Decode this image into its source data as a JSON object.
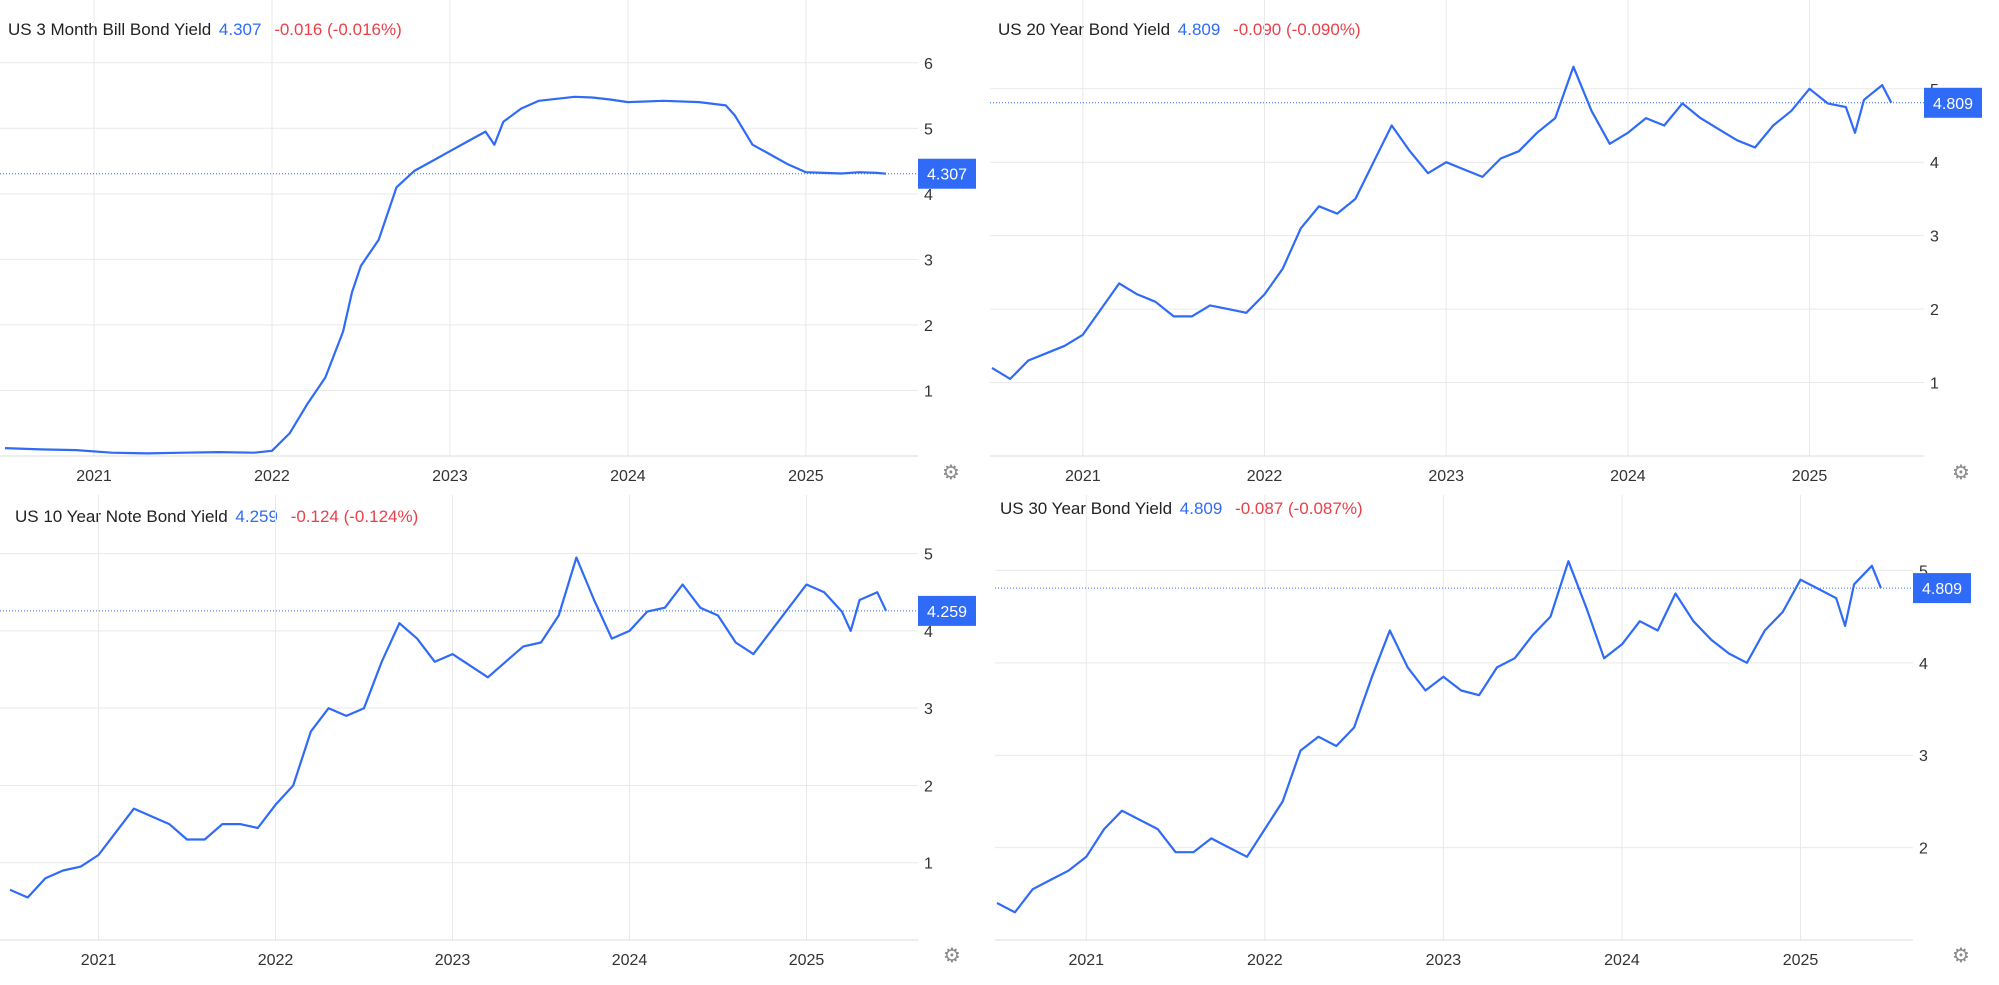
{
  "colors": {
    "line": "#2f6bf6",
    "badge": "#2f6bf6",
    "negative": "#e8414a",
    "grid": "#e9e9e9",
    "axis_text": "#333333"
  },
  "gear_icon": "gear-icon",
  "gear_glyph": "⚙",
  "chart_data": [
    {
      "type": "line",
      "title": "US 3 Month Bill Bond Yield",
      "current_value": "4.307",
      "change": "-0.016 (-0.016%)",
      "last_label": "4.307",
      "x_ticks": [
        "2021",
        "2022",
        "2023",
        "2024",
        "2025"
      ],
      "y_ticks": [
        "1",
        "2",
        "3",
        "4",
        "5",
        "6"
      ],
      "xlim": [
        2020.5,
        2025.63
      ],
      "ylim": [
        0,
        6.5
      ],
      "reference_line": 4.307,
      "x": [
        2020.5,
        2020.7,
        2020.9,
        2021.1,
        2021.3,
        2021.5,
        2021.7,
        2021.9,
        2022.0,
        2022.1,
        2022.2,
        2022.3,
        2022.4,
        2022.45,
        2022.5,
        2022.6,
        2022.7,
        2022.8,
        2022.9,
        2023.0,
        2023.1,
        2023.2,
        2023.25,
        2023.3,
        2023.4,
        2023.5,
        2023.6,
        2023.7,
        2023.8,
        2023.9,
        2024.0,
        2024.2,
        2024.4,
        2024.55,
        2024.6,
        2024.7,
        2024.8,
        2024.9,
        2025.0,
        2025.1,
        2025.2,
        2025.3,
        2025.4,
        2025.45
      ],
      "y": [
        0.12,
        0.1,
        0.09,
        0.05,
        0.04,
        0.05,
        0.06,
        0.05,
        0.08,
        0.35,
        0.8,
        1.2,
        1.9,
        2.5,
        2.9,
        3.3,
        4.1,
        4.35,
        4.5,
        4.65,
        4.8,
        4.95,
        4.75,
        5.1,
        5.3,
        5.42,
        5.45,
        5.48,
        5.47,
        5.44,
        5.4,
        5.42,
        5.4,
        5.35,
        5.2,
        4.75,
        4.6,
        4.45,
        4.33,
        4.32,
        4.31,
        4.33,
        4.32,
        4.307
      ]
    },
    {
      "type": "line",
      "title": "US 20 Year Bond Yield",
      "current_value": "4.809",
      "change": "-0.090 (-0.090%)",
      "last_label": "4.809",
      "x_ticks": [
        "2021",
        "2022",
        "2023",
        "2024",
        "2025"
      ],
      "y_ticks": [
        "1",
        "2",
        "3",
        "4",
        "5"
      ],
      "xlim": [
        2020.5,
        2025.63
      ],
      "ylim": [
        0,
        5.8
      ],
      "reference_line": 4.809,
      "x": [
        2020.5,
        2020.6,
        2020.7,
        2020.8,
        2020.9,
        2021.0,
        2021.1,
        2021.2,
        2021.3,
        2021.4,
        2021.5,
        2021.6,
        2021.7,
        2021.8,
        2021.9,
        2022.0,
        2022.1,
        2022.2,
        2022.3,
        2022.4,
        2022.5,
        2022.6,
        2022.7,
        2022.8,
        2022.9,
        2023.0,
        2023.1,
        2023.2,
        2023.3,
        2023.4,
        2023.5,
        2023.6,
        2023.7,
        2023.8,
        2023.9,
        2024.0,
        2024.1,
        2024.2,
        2024.3,
        2024.4,
        2024.5,
        2024.6,
        2024.7,
        2024.8,
        2024.9,
        2025.0,
        2025.1,
        2025.2,
        2025.25,
        2025.3,
        2025.4,
        2025.45
      ],
      "y": [
        1.2,
        1.05,
        1.3,
        1.4,
        1.5,
        1.65,
        2.0,
        2.35,
        2.2,
        2.1,
        1.9,
        1.9,
        2.05,
        2.0,
        1.95,
        2.2,
        2.55,
        3.1,
        3.4,
        3.3,
        3.5,
        4.0,
        4.5,
        4.15,
        3.85,
        4.0,
        3.9,
        3.8,
        4.05,
        4.15,
        4.4,
        4.6,
        5.3,
        4.7,
        4.25,
        4.4,
        4.6,
        4.5,
        4.8,
        4.6,
        4.45,
        4.3,
        4.2,
        4.5,
        4.7,
        5.0,
        4.8,
        4.75,
        4.4,
        4.85,
        5.05,
        4.809
      ]
    },
    {
      "type": "line",
      "title": "US 10 Year Note Bond Yield",
      "current_value": "4.259",
      "change": "-0.124 (-0.124%)",
      "last_label": "4.259",
      "x_ticks": [
        "2021",
        "2022",
        "2023",
        "2024",
        "2025"
      ],
      "y_ticks": [
        "1",
        "2",
        "3",
        "4",
        "5"
      ],
      "xlim": [
        2020.5,
        2025.63
      ],
      "ylim": [
        0,
        5.5
      ],
      "reference_line": 4.259,
      "x": [
        2020.5,
        2020.6,
        2020.7,
        2020.8,
        2020.9,
        2021.0,
        2021.1,
        2021.2,
        2021.3,
        2021.4,
        2021.5,
        2021.6,
        2021.7,
        2021.8,
        2021.9,
        2022.0,
        2022.1,
        2022.2,
        2022.3,
        2022.4,
        2022.5,
        2022.6,
        2022.7,
        2022.8,
        2022.9,
        2023.0,
        2023.1,
        2023.2,
        2023.3,
        2023.4,
        2023.5,
        2023.6,
        2023.7,
        2023.8,
        2023.9,
        2024.0,
        2024.1,
        2024.2,
        2024.3,
        2024.4,
        2024.5,
        2024.6,
        2024.7,
        2024.8,
        2024.9,
        2025.0,
        2025.1,
        2025.2,
        2025.25,
        2025.3,
        2025.4,
        2025.45
      ],
      "y": [
        0.65,
        0.55,
        0.8,
        0.9,
        0.95,
        1.1,
        1.4,
        1.7,
        1.6,
        1.5,
        1.3,
        1.3,
        1.5,
        1.5,
        1.45,
        1.75,
        2.0,
        2.7,
        3.0,
        2.9,
        3.0,
        3.6,
        4.1,
        3.9,
        3.6,
        3.7,
        3.55,
        3.4,
        3.6,
        3.8,
        3.85,
        4.2,
        4.95,
        4.4,
        3.9,
        4.0,
        4.25,
        4.3,
        4.6,
        4.3,
        4.2,
        3.85,
        3.7,
        4.0,
        4.3,
        4.6,
        4.5,
        4.25,
        4.0,
        4.4,
        4.5,
        4.259
      ]
    },
    {
      "type": "line",
      "title": "US 30 Year Bond Yield",
      "current_value": "4.809",
      "change": "-0.087 (-0.087%)",
      "last_label": "4.809",
      "x_ticks": [
        "2021",
        "2022",
        "2023",
        "2024",
        "2025"
      ],
      "y_ticks": [
        "2",
        "3",
        "4",
        "5"
      ],
      "xlim": [
        2020.5,
        2025.63
      ],
      "ylim": [
        1.0,
        5.6
      ],
      "reference_line": 4.809,
      "x": [
        2020.5,
        2020.6,
        2020.7,
        2020.8,
        2020.9,
        2021.0,
        2021.1,
        2021.2,
        2021.3,
        2021.4,
        2021.5,
        2021.6,
        2021.7,
        2021.8,
        2021.9,
        2022.0,
        2022.1,
        2022.2,
        2022.3,
        2022.4,
        2022.5,
        2022.6,
        2022.7,
        2022.8,
        2022.9,
        2023.0,
        2023.1,
        2023.2,
        2023.3,
        2023.4,
        2023.5,
        2023.6,
        2023.7,
        2023.8,
        2023.9,
        2024.0,
        2024.1,
        2024.2,
        2024.3,
        2024.4,
        2024.5,
        2024.6,
        2024.7,
        2024.8,
        2024.9,
        2025.0,
        2025.1,
        2025.2,
        2025.25,
        2025.3,
        2025.4,
        2025.45
      ],
      "y": [
        1.4,
        1.3,
        1.55,
        1.65,
        1.75,
        1.9,
        2.2,
        2.4,
        2.3,
        2.2,
        1.95,
        1.95,
        2.1,
        2.0,
        1.9,
        2.2,
        2.5,
        3.05,
        3.2,
        3.1,
        3.3,
        3.85,
        4.35,
        3.95,
        3.7,
        3.85,
        3.7,
        3.65,
        3.95,
        4.05,
        4.3,
        4.5,
        5.1,
        4.6,
        4.05,
        4.2,
        4.45,
        4.35,
        4.75,
        4.45,
        4.25,
        4.1,
        4.0,
        4.35,
        4.55,
        4.9,
        4.8,
        4.7,
        4.4,
        4.85,
        5.05,
        4.809
      ]
    }
  ]
}
